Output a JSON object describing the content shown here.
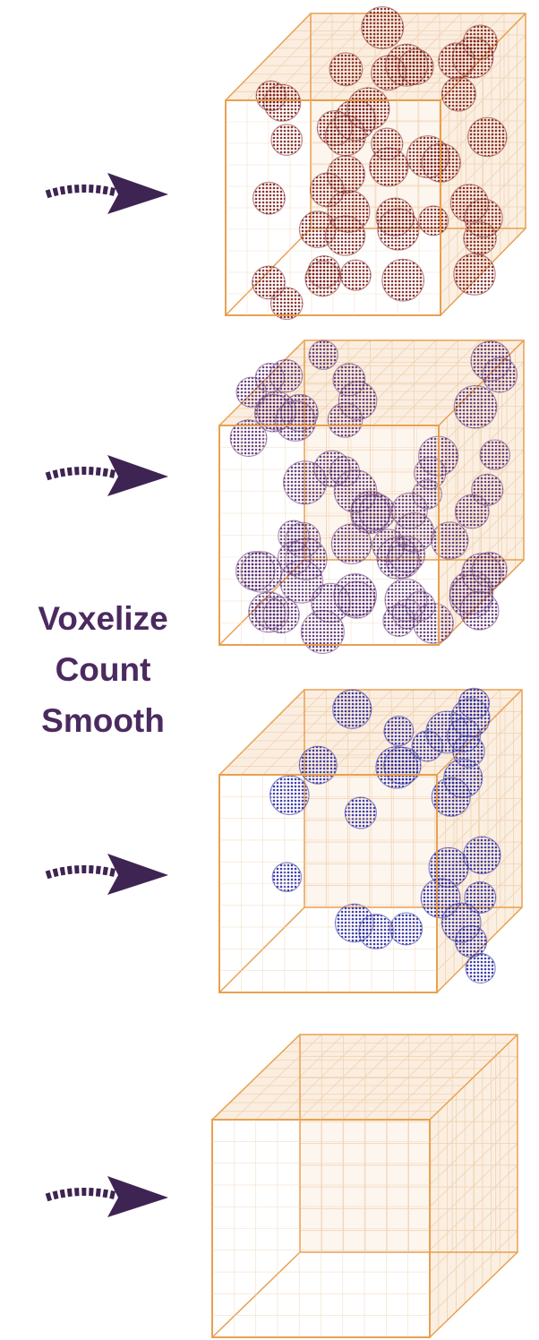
{
  "label": {
    "lines": [
      "Voxelize",
      "Count",
      "Smooth"
    ]
  }
}
